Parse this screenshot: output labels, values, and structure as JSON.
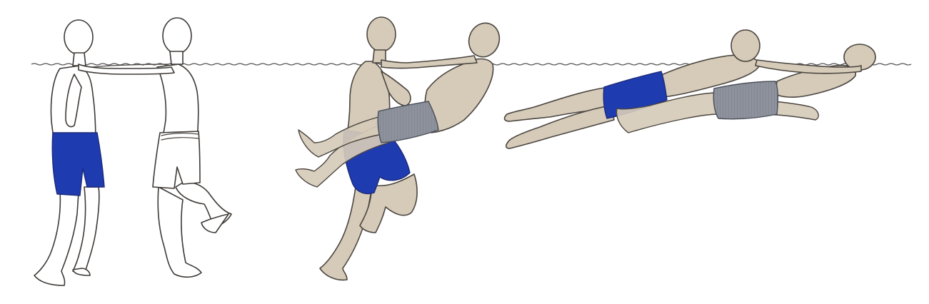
{
  "illustration": {
    "panels": [
      {
        "stage": 1,
        "description_name": "rescuer-and-victim-standing-facing"
      },
      {
        "stage": 2,
        "description_name": "rescuer-lifting-victim-legs"
      },
      {
        "stage": 3,
        "description_name": "rescuer-towing-victim-on-back"
      }
    ]
  },
  "colors": {
    "water_line": "#555555",
    "skin": "#d6cbb8",
    "rescuer_trunks": "#1f3bb0",
    "victim_trunks": "#8e929c",
    "outline": "#4a4540",
    "background": "#ffffff"
  }
}
